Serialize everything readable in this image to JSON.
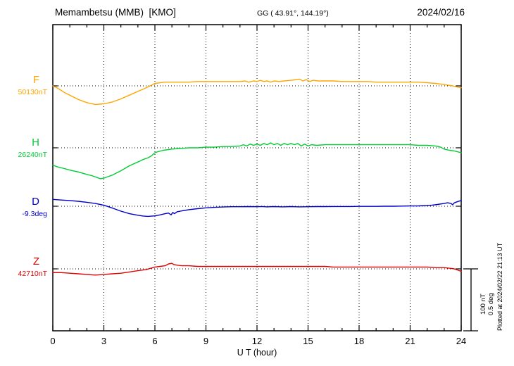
{
  "header": {
    "station": "Memambetsu (MMB)  [KMO]",
    "coords": "GG ( 43.91°, 144.19°)",
    "date": "2024/02/16"
  },
  "scalebar": {
    "line1": "100 nT",
    "line2": "0.5 deg"
  },
  "footer": {
    "plotted_at": "Plotted at 2024/02/22 21:13 UT"
  },
  "chart_data": {
    "type": "line",
    "title": "Memambetsu (MMB) [KMO] magnetogram 2024/02/16",
    "xlabel": "U T (hour)",
    "xlim": [
      0,
      24
    ],
    "xticks": [
      0,
      3,
      6,
      9,
      12,
      15,
      18,
      21,
      24
    ],
    "x_minor_step": 1,
    "grid": "dotted vertical lines every 3 h, dotted horizontal line at each component baseline",
    "scale_reference": {
      "nT_per_bar": 100,
      "deg_per_bar": 0.5
    },
    "series": [
      {
        "name": "F",
        "color": "#FFA500",
        "unit": "nT",
        "baseline_value": 50130,
        "baseline_label": "50130nT",
        "points": [
          [
            0,
            0
          ],
          [
            0.3,
            -4
          ],
          [
            0.7,
            -11
          ],
          [
            1,
            -15
          ],
          [
            1.5,
            -22
          ],
          [
            2,
            -27
          ],
          [
            2.5,
            -30
          ],
          [
            3,
            -29
          ],
          [
            3.5,
            -26
          ],
          [
            4,
            -21
          ],
          [
            4.5,
            -15
          ],
          [
            5,
            -9
          ],
          [
            5.5,
            -3
          ],
          [
            5.8,
            1
          ],
          [
            6,
            4
          ],
          [
            6.3,
            5
          ],
          [
            6.6,
            6
          ],
          [
            7,
            6
          ],
          [
            7.5,
            6
          ],
          [
            8,
            6
          ],
          [
            8.5,
            7
          ],
          [
            9,
            7
          ],
          [
            9.5,
            7
          ],
          [
            10,
            7
          ],
          [
            10.5,
            7
          ],
          [
            11,
            7
          ],
          [
            11.3,
            8
          ],
          [
            11.5,
            6
          ],
          [
            11.8,
            8
          ],
          [
            12,
            7
          ],
          [
            12.2,
            9
          ],
          [
            12.4,
            7
          ],
          [
            12.6,
            8
          ],
          [
            12.8,
            6
          ],
          [
            13,
            8
          ],
          [
            13.3,
            7
          ],
          [
            13.6,
            8
          ],
          [
            14,
            9
          ],
          [
            14.3,
            10
          ],
          [
            14.5,
            11
          ],
          [
            14.7,
            8
          ],
          [
            14.9,
            10
          ],
          [
            15.1,
            7
          ],
          [
            15.3,
            9
          ],
          [
            15.6,
            8
          ],
          [
            16,
            8
          ],
          [
            16.5,
            8
          ],
          [
            17,
            7
          ],
          [
            17.5,
            7
          ],
          [
            18,
            7
          ],
          [
            18.5,
            7
          ],
          [
            19,
            6
          ],
          [
            19.5,
            6
          ],
          [
            20,
            6
          ],
          [
            20.5,
            6
          ],
          [
            21,
            6
          ],
          [
            21.5,
            6
          ],
          [
            22,
            5
          ],
          [
            22.5,
            4
          ],
          [
            23,
            2
          ],
          [
            23.5,
            0
          ],
          [
            23.8,
            -2
          ],
          [
            24,
            -3
          ]
        ]
      },
      {
        "name": "H",
        "color": "#00CC33",
        "unit": "nT",
        "baseline_value": 26240,
        "baseline_label": "26240nT",
        "points": [
          [
            0,
            -28
          ],
          [
            0.3,
            -31
          ],
          [
            0.6,
            -33
          ],
          [
            1,
            -36
          ],
          [
            1.5,
            -39
          ],
          [
            2,
            -43
          ],
          [
            2.3,
            -45
          ],
          [
            2.6,
            -48
          ],
          [
            2.8,
            -50
          ],
          [
            3,
            -49
          ],
          [
            3.2,
            -47
          ],
          [
            3.5,
            -44
          ],
          [
            4,
            -37
          ],
          [
            4.5,
            -29
          ],
          [
            5,
            -23
          ],
          [
            5.3,
            -19
          ],
          [
            5.6,
            -16
          ],
          [
            5.8,
            -13
          ],
          [
            6,
            -8
          ],
          [
            6.2,
            -6
          ],
          [
            6.5,
            -4
          ],
          [
            7,
            -2
          ],
          [
            7.5,
            -1
          ],
          [
            8,
            0
          ],
          [
            8.5,
            0
          ],
          [
            9,
            1
          ],
          [
            9.5,
            1
          ],
          [
            10,
            2
          ],
          [
            10.5,
            2
          ],
          [
            11,
            3
          ],
          [
            11.2,
            5
          ],
          [
            11.4,
            3
          ],
          [
            11.6,
            6
          ],
          [
            11.8,
            4
          ],
          [
            12,
            6
          ],
          [
            12.2,
            4
          ],
          [
            12.4,
            7
          ],
          [
            12.6,
            5
          ],
          [
            12.8,
            8
          ],
          [
            13,
            5
          ],
          [
            13.2,
            7
          ],
          [
            13.4,
            4
          ],
          [
            13.6,
            7
          ],
          [
            13.8,
            5
          ],
          [
            14,
            7
          ],
          [
            14.2,
            5
          ],
          [
            14.4,
            7
          ],
          [
            14.6,
            3
          ],
          [
            14.8,
            6
          ],
          [
            15,
            3
          ],
          [
            15.2,
            5
          ],
          [
            15.5,
            4
          ],
          [
            16,
            5
          ],
          [
            16.5,
            5
          ],
          [
            17,
            5
          ],
          [
            17.5,
            5
          ],
          [
            18,
            5
          ],
          [
            18.5,
            5
          ],
          [
            19,
            5
          ],
          [
            19.5,
            5
          ],
          [
            20,
            5
          ],
          [
            20.5,
            5
          ],
          [
            21,
            5
          ],
          [
            21.5,
            4
          ],
          [
            22,
            4
          ],
          [
            22.5,
            3
          ],
          [
            22.8,
            1
          ],
          [
            23,
            -2
          ],
          [
            23.3,
            -4
          ],
          [
            23.6,
            -5
          ],
          [
            24,
            -8
          ]
        ]
      },
      {
        "name": "D",
        "color": "#0000CD",
        "unit": "deg",
        "baseline_value": -9.3,
        "baseline_label": "-9.3deg",
        "points": [
          [
            0,
            0.055
          ],
          [
            0.5,
            0.05
          ],
          [
            1,
            0.046
          ],
          [
            1.5,
            0.04
          ],
          [
            2,
            0.032
          ],
          [
            2.5,
            0.022
          ],
          [
            3,
            0.008
          ],
          [
            3.5,
            -0.015
          ],
          [
            4,
            -0.04
          ],
          [
            4.5,
            -0.06
          ],
          [
            5,
            -0.073
          ],
          [
            5.3,
            -0.079
          ],
          [
            5.6,
            -0.082
          ],
          [
            6,
            -0.078
          ],
          [
            6.3,
            -0.07
          ],
          [
            6.6,
            -0.06
          ],
          [
            6.8,
            -0.055
          ],
          [
            6.95,
            -0.07
          ],
          [
            7.05,
            -0.05
          ],
          [
            7.15,
            -0.06
          ],
          [
            7.3,
            -0.045
          ],
          [
            7.6,
            -0.037
          ],
          [
            8,
            -0.028
          ],
          [
            8.5,
            -0.02
          ],
          [
            9,
            -0.013
          ],
          [
            9.5,
            -0.009
          ],
          [
            10,
            -0.006
          ],
          [
            10.5,
            -0.004
          ],
          [
            11,
            -0.004
          ],
          [
            11.5,
            -0.003
          ],
          [
            12,
            -0.004
          ],
          [
            12.3,
            -0.002
          ],
          [
            12.6,
            -0.005
          ],
          [
            13,
            -0.003
          ],
          [
            13.5,
            -0.005
          ],
          [
            14,
            -0.003
          ],
          [
            14.5,
            -0.005
          ],
          [
            15,
            -0.004
          ],
          [
            15.5,
            -0.003
          ],
          [
            16,
            -0.003
          ],
          [
            16.5,
            -0.002
          ],
          [
            17,
            -0.002
          ],
          [
            17.5,
            -0.002
          ],
          [
            18,
            -0.001
          ],
          [
            18.5,
            -0.001
          ],
          [
            19,
            -0.001
          ],
          [
            19.5,
            0
          ],
          [
            20,
            0
          ],
          [
            20.5,
            0.001
          ],
          [
            21,
            0.002
          ],
          [
            21.5,
            0.003
          ],
          [
            22,
            0.006
          ],
          [
            22.3,
            0.009
          ],
          [
            22.6,
            0.014
          ],
          [
            23,
            0.022
          ],
          [
            23.2,
            0.028
          ],
          [
            23.4,
            0.022
          ],
          [
            23.5,
            0.012
          ],
          [
            23.6,
            0.027
          ],
          [
            23.8,
            0.038
          ],
          [
            24,
            0.046
          ]
        ]
      },
      {
        "name": "Z",
        "color": "#E00000",
        "unit": "nT",
        "baseline_value": 42710,
        "baseline_label": "42710nT",
        "points": [
          [
            0,
            -6
          ],
          [
            0.5,
            -6
          ],
          [
            1,
            -7
          ],
          [
            1.5,
            -8
          ],
          [
            2,
            -9
          ],
          [
            2.5,
            -10
          ],
          [
            3,
            -9
          ],
          [
            3.5,
            -8
          ],
          [
            4,
            -7
          ],
          [
            4.5,
            -5
          ],
          [
            5,
            -3
          ],
          [
            5.5,
            -1
          ],
          [
            6,
            3
          ],
          [
            6.3,
            4
          ],
          [
            6.6,
            5
          ],
          [
            6.8,
            8
          ],
          [
            7,
            9
          ],
          [
            7.1,
            7
          ],
          [
            7.3,
            6
          ],
          [
            7.6,
            5
          ],
          [
            8,
            5
          ],
          [
            8.5,
            4
          ],
          [
            9,
            4
          ],
          [
            9.5,
            4
          ],
          [
            10,
            4
          ],
          [
            10.5,
            4
          ],
          [
            11,
            4
          ],
          [
            11.5,
            4
          ],
          [
            12,
            4
          ],
          [
            12.5,
            4
          ],
          [
            13,
            4
          ],
          [
            13.5,
            4
          ],
          [
            14,
            4
          ],
          [
            14.5,
            4
          ],
          [
            15,
            4
          ],
          [
            15.5,
            4
          ],
          [
            16,
            4
          ],
          [
            16.5,
            3
          ],
          [
            17,
            3
          ],
          [
            17.5,
            3
          ],
          [
            18,
            3
          ],
          [
            18.5,
            3
          ],
          [
            19,
            3
          ],
          [
            19.5,
            3
          ],
          [
            20,
            3
          ],
          [
            20.5,
            3
          ],
          [
            21,
            3
          ],
          [
            21.5,
            3
          ],
          [
            22,
            3
          ],
          [
            22.5,
            2
          ],
          [
            23,
            2
          ],
          [
            23.3,
            1
          ],
          [
            23.6,
            0
          ],
          [
            24,
            -4
          ]
        ]
      }
    ]
  }
}
